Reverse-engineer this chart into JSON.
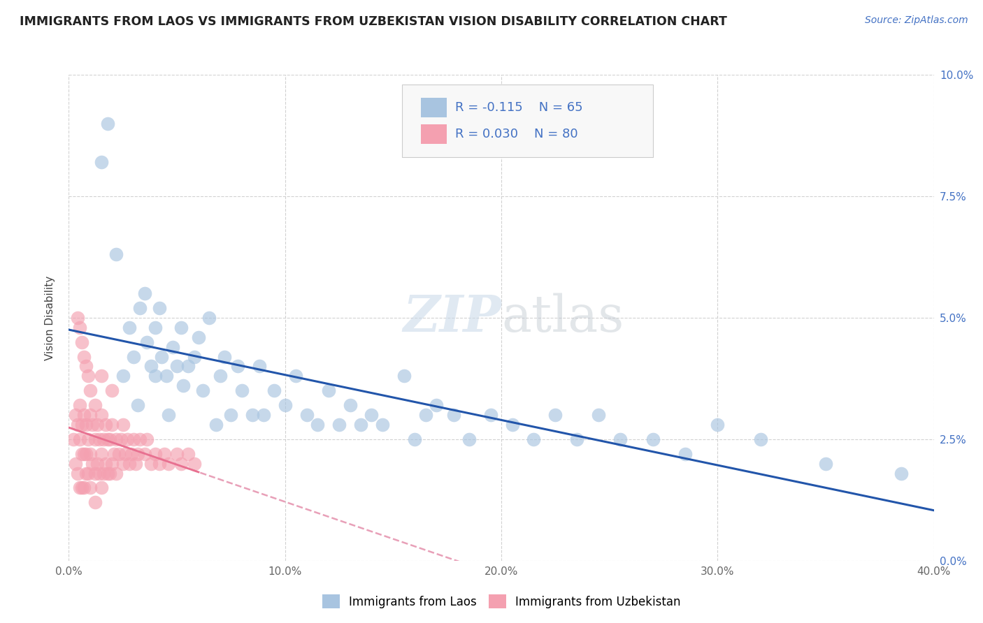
{
  "title": "IMMIGRANTS FROM LAOS VS IMMIGRANTS FROM UZBEKISTAN VISION DISABILITY CORRELATION CHART",
  "source_text": "Source: ZipAtlas.com",
  "ylabel": "Vision Disability",
  "xlim": [
    0.0,
    0.4
  ],
  "ylim": [
    0.0,
    0.1
  ],
  "xtick_labels": [
    "0.0%",
    "10.0%",
    "20.0%",
    "30.0%",
    "40.0%"
  ],
  "xtick_vals": [
    0.0,
    0.1,
    0.2,
    0.3,
    0.4
  ],
  "ytick_labels_right": [
    "0.0%",
    "2.5%",
    "5.0%",
    "7.5%",
    "10.0%"
  ],
  "ytick_vals": [
    0.0,
    0.025,
    0.05,
    0.075,
    0.1
  ],
  "laos_color": "#a8c4e0",
  "uzbekistan_color": "#f4a0b0",
  "laos_R": -0.115,
  "laos_N": 65,
  "uzbekistan_R": 0.03,
  "uzbekistan_N": 80,
  "laos_line_color": "#2255aa",
  "uzbekistan_line_color": "#e87090",
  "uzbekistan_dashed_color": "#e8a0b8",
  "watermark_zip": "ZIP",
  "watermark_atlas": "atlas",
  "legend_label_laos": "Immigrants from Laos",
  "legend_label_uzbekistan": "Immigrants from Uzbekistan",
  "background_color": "#ffffff",
  "grid_color": "#cccccc",
  "laos_x": [
    0.015,
    0.018,
    0.022,
    0.025,
    0.028,
    0.03,
    0.032,
    0.033,
    0.035,
    0.036,
    0.038,
    0.04,
    0.04,
    0.042,
    0.043,
    0.045,
    0.046,
    0.048,
    0.05,
    0.052,
    0.053,
    0.055,
    0.058,
    0.06,
    0.062,
    0.065,
    0.068,
    0.07,
    0.072,
    0.075,
    0.078,
    0.08,
    0.085,
    0.088,
    0.09,
    0.095,
    0.1,
    0.105,
    0.11,
    0.115,
    0.12,
    0.125,
    0.13,
    0.135,
    0.14,
    0.145,
    0.155,
    0.16,
    0.165,
    0.17,
    0.178,
    0.185,
    0.195,
    0.205,
    0.215,
    0.225,
    0.235,
    0.245,
    0.255,
    0.27,
    0.285,
    0.3,
    0.32,
    0.35,
    0.385
  ],
  "laos_y": [
    0.082,
    0.09,
    0.063,
    0.038,
    0.048,
    0.042,
    0.032,
    0.052,
    0.055,
    0.045,
    0.04,
    0.048,
    0.038,
    0.052,
    0.042,
    0.038,
    0.03,
    0.044,
    0.04,
    0.048,
    0.036,
    0.04,
    0.042,
    0.046,
    0.035,
    0.05,
    0.028,
    0.038,
    0.042,
    0.03,
    0.04,
    0.035,
    0.03,
    0.04,
    0.03,
    0.035,
    0.032,
    0.038,
    0.03,
    0.028,
    0.035,
    0.028,
    0.032,
    0.028,
    0.03,
    0.028,
    0.038,
    0.025,
    0.03,
    0.032,
    0.03,
    0.025,
    0.03,
    0.028,
    0.025,
    0.03,
    0.025,
    0.03,
    0.025,
    0.025,
    0.022,
    0.028,
    0.025,
    0.02,
    0.018
  ],
  "uzbekistan_x": [
    0.002,
    0.003,
    0.003,
    0.004,
    0.004,
    0.005,
    0.005,
    0.005,
    0.006,
    0.006,
    0.006,
    0.007,
    0.007,
    0.007,
    0.008,
    0.008,
    0.008,
    0.009,
    0.009,
    0.01,
    0.01,
    0.01,
    0.011,
    0.011,
    0.012,
    0.012,
    0.012,
    0.013,
    0.013,
    0.014,
    0.014,
    0.015,
    0.015,
    0.015,
    0.016,
    0.016,
    0.017,
    0.017,
    0.018,
    0.018,
    0.019,
    0.019,
    0.02,
    0.02,
    0.021,
    0.022,
    0.022,
    0.023,
    0.024,
    0.025,
    0.025,
    0.026,
    0.027,
    0.028,
    0.029,
    0.03,
    0.031,
    0.032,
    0.033,
    0.035,
    0.036,
    0.038,
    0.04,
    0.042,
    0.044,
    0.046,
    0.05,
    0.052,
    0.055,
    0.058,
    0.004,
    0.005,
    0.006,
    0.007,
    0.008,
    0.009,
    0.01,
    0.012,
    0.015,
    0.02
  ],
  "uzbekistan_y": [
    0.025,
    0.03,
    0.02,
    0.028,
    0.018,
    0.032,
    0.025,
    0.015,
    0.028,
    0.022,
    0.015,
    0.03,
    0.022,
    0.015,
    0.028,
    0.022,
    0.018,
    0.025,
    0.018,
    0.03,
    0.022,
    0.015,
    0.028,
    0.02,
    0.025,
    0.018,
    0.012,
    0.028,
    0.02,
    0.025,
    0.018,
    0.03,
    0.022,
    0.015,
    0.025,
    0.018,
    0.028,
    0.02,
    0.025,
    0.018,
    0.025,
    0.018,
    0.028,
    0.02,
    0.022,
    0.025,
    0.018,
    0.022,
    0.025,
    0.028,
    0.02,
    0.022,
    0.025,
    0.02,
    0.022,
    0.025,
    0.02,
    0.022,
    0.025,
    0.022,
    0.025,
    0.02,
    0.022,
    0.02,
    0.022,
    0.02,
    0.022,
    0.02,
    0.022,
    0.02,
    0.05,
    0.048,
    0.045,
    0.042,
    0.04,
    0.038,
    0.035,
    0.032,
    0.038,
    0.035
  ]
}
